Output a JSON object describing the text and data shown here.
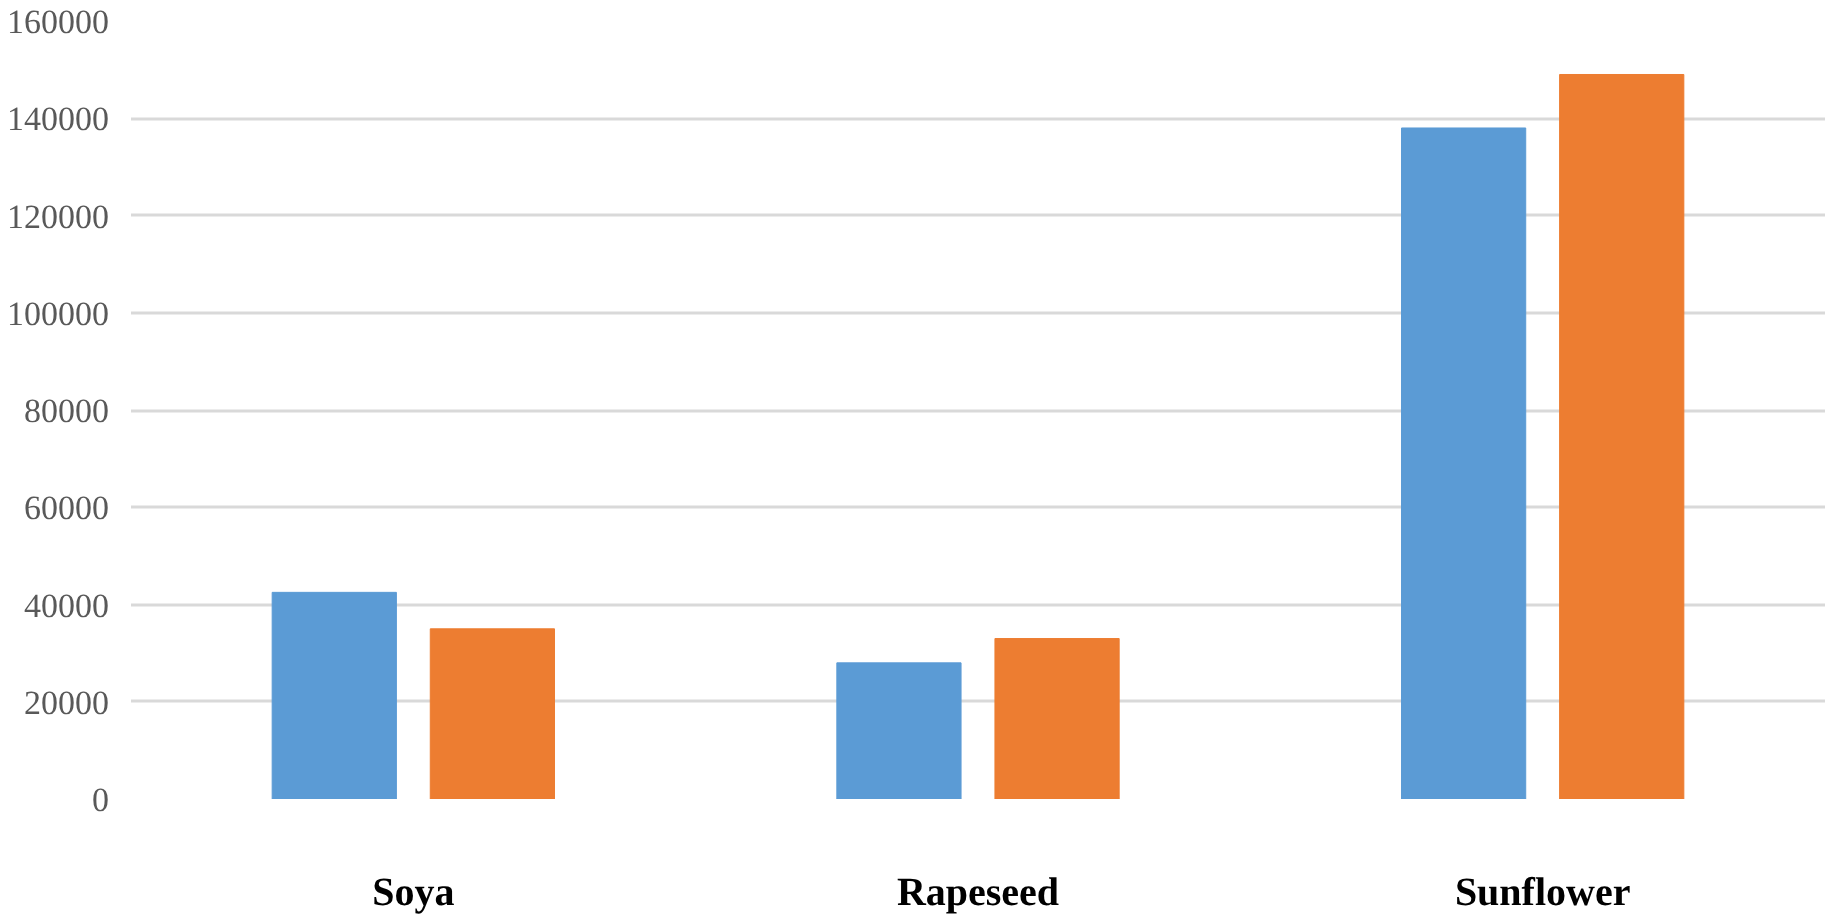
{
  "chart_data": {
    "type": "bar",
    "categories": [
      "Soya",
      "Rapeseed",
      "Sunflower"
    ],
    "series": [
      {
        "color": "#5b9bd5",
        "values": [
          42500,
          28000,
          138000
        ]
      },
      {
        "color": "#ed7d31",
        "values": [
          35000,
          33000,
          149000
        ]
      }
    ],
    "ylim": [
      0,
      160000
    ],
    "yticks": [
      0,
      20000,
      40000,
      60000,
      80000,
      100000,
      120000,
      140000,
      160000
    ],
    "grid": "y"
  }
}
